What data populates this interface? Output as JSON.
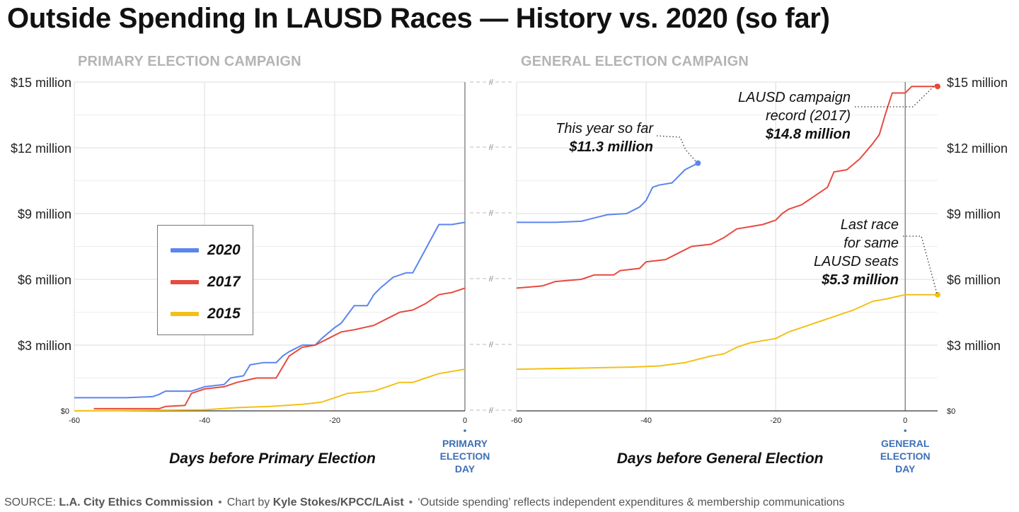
{
  "title": "Outside Spending In LAUSD Races — History vs. 2020 (so far)",
  "panels": {
    "primary_label": "PRIMARY ELECTION CAMPAIGN",
    "general_label": "GENERAL ELECTION CAMPAIGN"
  },
  "legend": [
    {
      "label": "2020",
      "color": "#5b85ef"
    },
    {
      "label": "2017",
      "color": "#e74a3f"
    },
    {
      "label": "2015",
      "color": "#f3c017"
    }
  ],
  "source": {
    "prefix": "SOURCE:",
    "source_name": "L.A. City Ethics Commission",
    "chart_by_prefix": "Chart by",
    "author": "Kyle Stokes/KPCC/LAist",
    "note": "‘Outside spending’ reflects independent expenditures & membership communications"
  },
  "chart_data": [
    {
      "type": "line",
      "title": "PRIMARY ELECTION CAMPAIGN",
      "xlabel": "Days before Primary Election",
      "xlim": [
        -60,
        0
      ],
      "ylim": [
        0,
        15
      ],
      "xticks": [
        "-60",
        "-40",
        "-20",
        "0"
      ],
      "yticks": [
        "$0",
        "$3 million",
        "$6 million",
        "$9 million",
        "$15 million"
      ],
      "yticks_minor": [
        "$12 million"
      ],
      "end_marker": "PRIMARY ELECTION DAY",
      "grid": true,
      "series": [
        {
          "name": "2020",
          "color": "#5b85ef",
          "points": [
            [
              -60,
              0.6
            ],
            [
              -52,
              0.6
            ],
            [
              -48,
              0.65
            ],
            [
              -47,
              0.75
            ],
            [
              -46,
              0.9
            ],
            [
              -42,
              0.9
            ],
            [
              -40,
              1.1
            ],
            [
              -37,
              1.2
            ],
            [
              -36,
              1.5
            ],
            [
              -34,
              1.6
            ],
            [
              -33,
              2.1
            ],
            [
              -31,
              2.2
            ],
            [
              -29,
              2.2
            ],
            [
              -28,
              2.5
            ],
            [
              -27,
              2.7
            ],
            [
              -25,
              3.0
            ],
            [
              -23,
              3.0
            ],
            [
              -22,
              3.3
            ],
            [
              -20,
              3.8
            ],
            [
              -19,
              4.0
            ],
            [
              -17,
              4.8
            ],
            [
              -15,
              4.8
            ],
            [
              -14,
              5.3
            ],
            [
              -13,
              5.6
            ],
            [
              -11,
              6.1
            ],
            [
              -9,
              6.3
            ],
            [
              -8,
              6.3
            ],
            [
              -6,
              7.4
            ],
            [
              -4,
              8.5
            ],
            [
              -2,
              8.5
            ],
            [
              0,
              8.6
            ]
          ]
        },
        {
          "name": "2017",
          "color": "#e74a3f",
          "points": [
            [
              -57,
              0.1
            ],
            [
              -47,
              0.1
            ],
            [
              -46,
              0.2
            ],
            [
              -43,
              0.25
            ],
            [
              -42,
              0.8
            ],
            [
              -40,
              1.0
            ],
            [
              -37,
              1.1
            ],
            [
              -35,
              1.3
            ],
            [
              -32,
              1.5
            ],
            [
              -29,
              1.5
            ],
            [
              -27,
              2.5
            ],
            [
              -25,
              2.9
            ],
            [
              -23,
              3.0
            ],
            [
              -21,
              3.3
            ],
            [
              -19,
              3.6
            ],
            [
              -17,
              3.7
            ],
            [
              -14,
              3.9
            ],
            [
              -12,
              4.2
            ],
            [
              -10,
              4.5
            ],
            [
              -8,
              4.6
            ],
            [
              -6,
              4.9
            ],
            [
              -4,
              5.3
            ],
            [
              -2,
              5.4
            ],
            [
              0,
              5.6
            ]
          ]
        },
        {
          "name": "2015",
          "color": "#f3c017",
          "points": [
            [
              -60,
              0.0
            ],
            [
              -40,
              0.05
            ],
            [
              -35,
              0.15
            ],
            [
              -30,
              0.2
            ],
            [
              -25,
              0.3
            ],
            [
              -22,
              0.4
            ],
            [
              -20,
              0.6
            ],
            [
              -18,
              0.8
            ],
            [
              -14,
              0.9
            ],
            [
              -12,
              1.1
            ],
            [
              -10,
              1.3
            ],
            [
              -8,
              1.3
            ],
            [
              -6,
              1.5
            ],
            [
              -4,
              1.7
            ],
            [
              -2,
              1.8
            ],
            [
              0,
              1.9
            ]
          ]
        }
      ]
    },
    {
      "type": "line",
      "title": "GENERAL ELECTION CAMPAIGN",
      "xlabel": "Days before General Election",
      "xlim": [
        -60,
        5
      ],
      "ylim": [
        0,
        15
      ],
      "xticks": [
        "-60",
        "-40",
        "-20",
        "0"
      ],
      "yticks": [
        "$0",
        "$3 million",
        "$6 million",
        "$9 million",
        "$12 million",
        "$15 million"
      ],
      "end_marker": "GENERAL ELECTION DAY",
      "grid": true,
      "series": [
        {
          "name": "2020",
          "color": "#5b85ef",
          "points": [
            [
              -60,
              8.6
            ],
            [
              -54,
              8.6
            ],
            [
              -50,
              8.65
            ],
            [
              -48,
              8.8
            ],
            [
              -46,
              8.95
            ],
            [
              -43,
              9.0
            ],
            [
              -41,
              9.3
            ],
            [
              -40,
              9.6
            ],
            [
              -39,
              10.2
            ],
            [
              -38,
              10.3
            ],
            [
              -36,
              10.4
            ],
            [
              -34,
              11.0
            ],
            [
              -32,
              11.3
            ]
          ]
        },
        {
          "name": "2017",
          "color": "#e74a3f",
          "points": [
            [
              -60,
              5.6
            ],
            [
              -56,
              5.7
            ],
            [
              -54,
              5.9
            ],
            [
              -50,
              6.0
            ],
            [
              -48,
              6.2
            ],
            [
              -45,
              6.2
            ],
            [
              -44,
              6.4
            ],
            [
              -41,
              6.5
            ],
            [
              -40,
              6.8
            ],
            [
              -37,
              6.9
            ],
            [
              -35,
              7.2
            ],
            [
              -33,
              7.5
            ],
            [
              -30,
              7.6
            ],
            [
              -28,
              7.9
            ],
            [
              -26,
              8.3
            ],
            [
              -24,
              8.4
            ],
            [
              -22,
              8.5
            ],
            [
              -20,
              8.7
            ],
            [
              -19,
              9.0
            ],
            [
              -18,
              9.2
            ],
            [
              -16,
              9.4
            ],
            [
              -14,
              9.8
            ],
            [
              -12,
              10.2
            ],
            [
              -11,
              10.9
            ],
            [
              -9,
              11.0
            ],
            [
              -7,
              11.5
            ],
            [
              -5,
              12.2
            ],
            [
              -4,
              12.6
            ],
            [
              -3,
              13.6
            ],
            [
              -2,
              14.5
            ],
            [
              0,
              14.5
            ],
            [
              1,
              14.8
            ],
            [
              5,
              14.8
            ]
          ]
        },
        {
          "name": "2015",
          "color": "#f3c017",
          "points": [
            [
              -60,
              1.9
            ],
            [
              -50,
              1.95
            ],
            [
              -42,
              2.0
            ],
            [
              -38,
              2.05
            ],
            [
              -34,
              2.2
            ],
            [
              -30,
              2.5
            ],
            [
              -28,
              2.6
            ],
            [
              -26,
              2.9
            ],
            [
              -24,
              3.1
            ],
            [
              -22,
              3.2
            ],
            [
              -20,
              3.3
            ],
            [
              -18,
              3.6
            ],
            [
              -16,
              3.8
            ],
            [
              -14,
              4.0
            ],
            [
              -12,
              4.2
            ],
            [
              -10,
              4.4
            ],
            [
              -8,
              4.6
            ],
            [
              -5,
              5.0
            ],
            [
              -3,
              5.1
            ],
            [
              0,
              5.3
            ],
            [
              5,
              5.3
            ]
          ]
        }
      ],
      "annotations": [
        {
          "line1": "This year so far",
          "value": "$11.3 million",
          "series": "2020",
          "at": [
            -32,
            11.3
          ]
        },
        {
          "line1": "LAUSD campaign",
          "line2": "record (2017)",
          "value": "$14.8 million",
          "series": "2017",
          "at": [
            5,
            14.8
          ]
        },
        {
          "line1": "Last race",
          "line2": "for same",
          "line3": "LAUSD seats",
          "value": "$5.3 million",
          "series": "2015",
          "at": [
            5,
            5.3
          ]
        }
      ]
    }
  ]
}
